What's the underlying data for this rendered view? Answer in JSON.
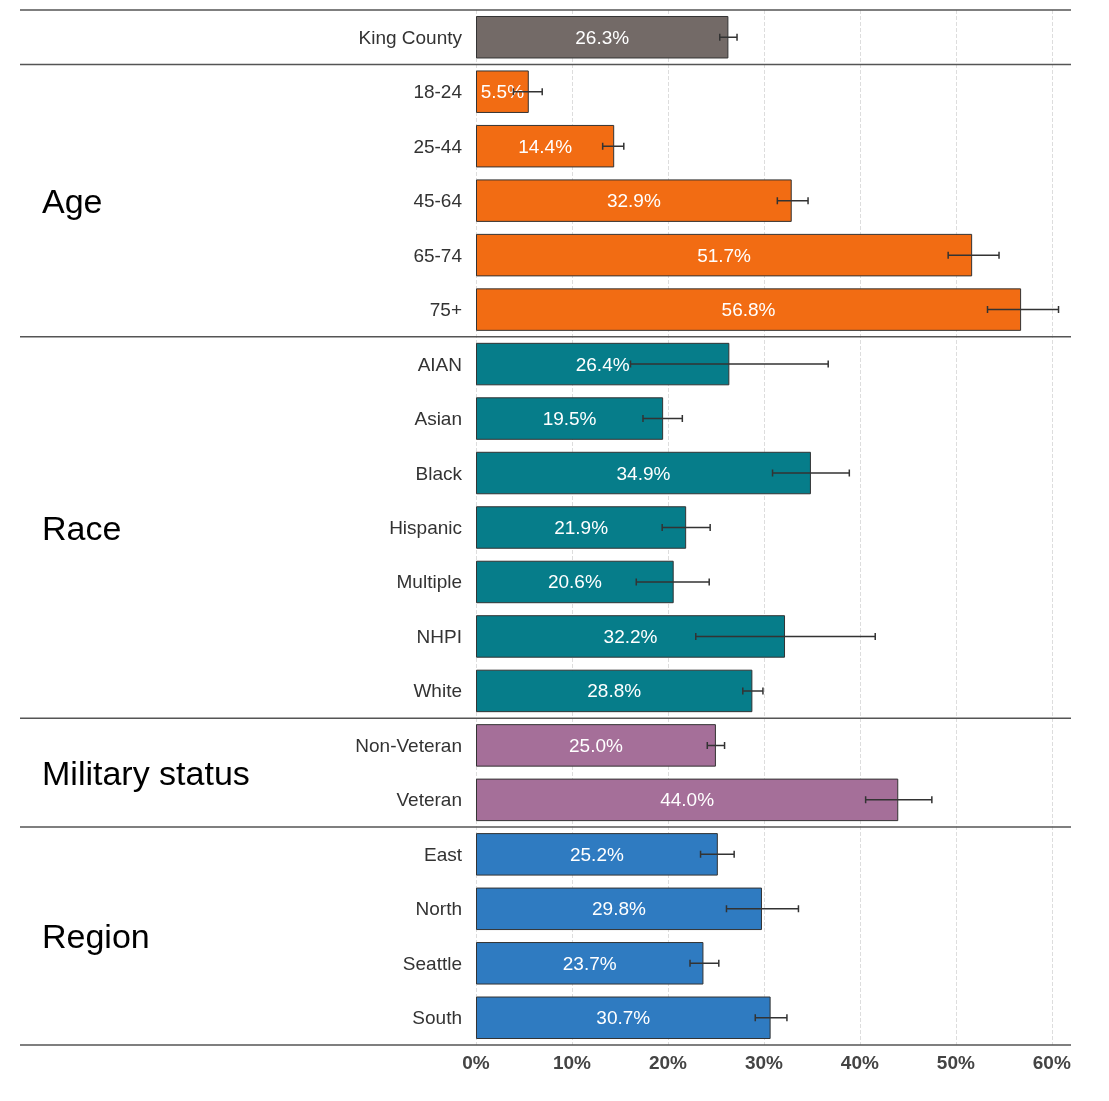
{
  "chart_data": {
    "type": "bar",
    "orientation": "horizontal",
    "categories": [
      "King County",
      "18-24",
      "25-44",
      "45-64",
      "65-74",
      "75+",
      "AIAN",
      "Asian",
      "Black",
      "Hispanic",
      "Multiple",
      "NHPI",
      "White",
      "Non-Veteran",
      "Veteran",
      "East",
      "North",
      "Seattle",
      "South"
    ],
    "values": [
      26.3,
      5.5,
      14.4,
      32.9,
      51.7,
      56.8,
      26.4,
      19.5,
      34.9,
      21.9,
      20.6,
      32.2,
      28.8,
      25.0,
      44.0,
      25.2,
      29.8,
      23.7,
      30.7
    ],
    "value_labels": [
      "26.3%",
      "5.5%",
      "14.4%",
      "32.9%",
      "51.7%",
      "56.8%",
      "26.4%",
      "19.5%",
      "34.9%",
      "21.9%",
      "20.6%",
      "32.2%",
      "28.8%",
      "25.0%",
      "44.0%",
      "25.2%",
      "29.8%",
      "23.7%",
      "30.7%"
    ],
    "errors": [
      [
        25.4,
        27.2
      ],
      [
        3.9,
        6.9
      ],
      [
        13.2,
        15.4
      ],
      [
        31.4,
        34.6
      ],
      [
        49.2,
        54.5
      ],
      [
        53.3,
        60.7
      ],
      [
        16.1,
        36.7
      ],
      [
        17.4,
        21.5
      ],
      [
        30.9,
        38.9
      ],
      [
        19.4,
        24.4
      ],
      [
        16.7,
        24.3
      ],
      [
        22.9,
        41.6
      ],
      [
        27.8,
        29.9
      ],
      [
        24.1,
        25.9
      ],
      [
        40.6,
        47.5
      ],
      [
        23.4,
        26.9
      ],
      [
        26.1,
        33.6
      ],
      [
        22.3,
        25.3
      ],
      [
        29.1,
        32.4
      ]
    ],
    "colors": [
      "#736a67",
      "#f26c13",
      "#f26c13",
      "#f26c13",
      "#f26c13",
      "#f26c13",
      "#067d8a",
      "#067d8a",
      "#067d8a",
      "#067d8a",
      "#067d8a",
      "#067d8a",
      "#067d8a",
      "#a56f99",
      "#a56f99",
      "#2f7bc1",
      "#2f7bc1",
      "#2f7bc1",
      "#2f7bc1"
    ],
    "xlim": [
      0,
      62
    ],
    "xticks": [
      {
        "value": 0,
        "label": "0%"
      },
      {
        "value": 10,
        "label": "10%"
      },
      {
        "value": 20,
        "label": "20%"
      },
      {
        "value": 30,
        "label": "30%"
      },
      {
        "value": 40,
        "label": "40%"
      },
      {
        "value": 50,
        "label": "50%"
      },
      {
        "value": 60,
        "label": "60%"
      }
    ],
    "grid": "x",
    "annotations": [
      "Age",
      "Race",
      "Military status",
      "Region"
    ]
  }
}
